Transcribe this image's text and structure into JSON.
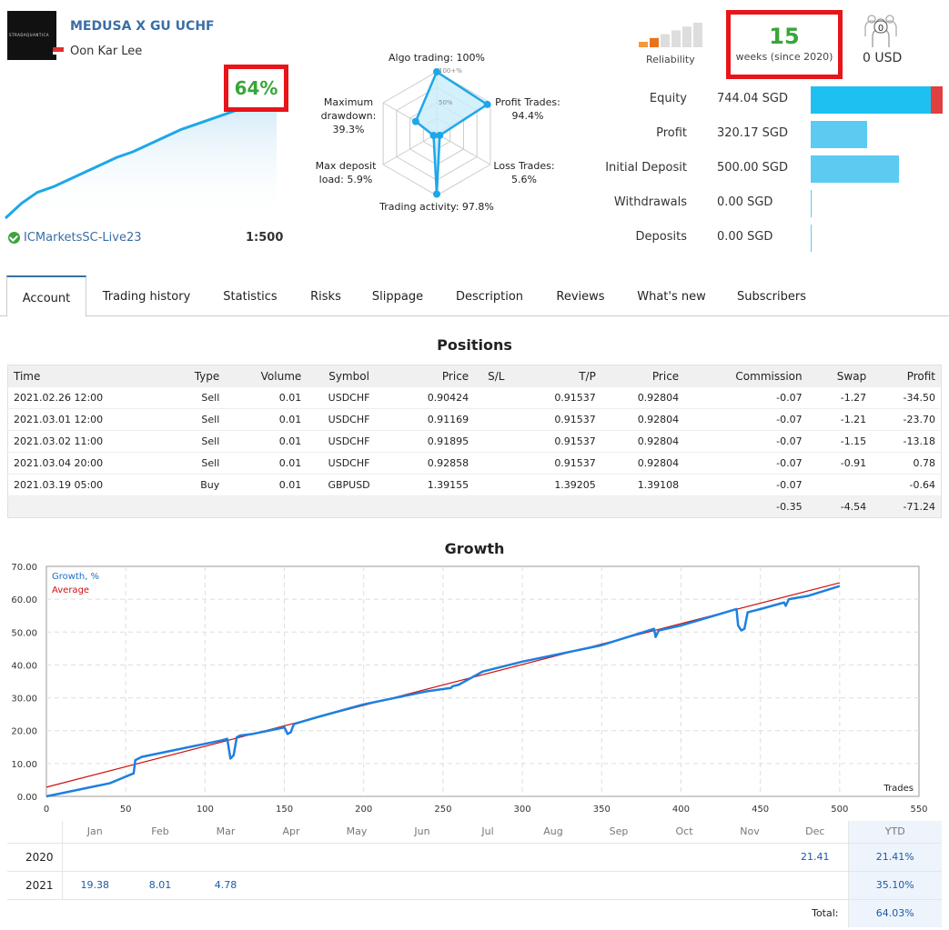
{
  "header": {
    "title": "MEDUSA X GU UCHF",
    "author": "Oon Kar Lee",
    "logo_text": "STRADAQUANTICA",
    "growth_badge": "64%",
    "broker": "ICMarketsSC-Live23",
    "leverage": "1:500"
  },
  "mini_growth": {
    "values": [
      0,
      8,
      14,
      17,
      21,
      25,
      29,
      33,
      36,
      40,
      44,
      48,
      51,
      54,
      57,
      60,
      62,
      64
    ]
  },
  "radar": {
    "labels": {
      "algo": "Algo trading: 100%",
      "profit_trades_1": "Profit Trades:",
      "profit_trades_2": "94.4%",
      "loss_trades_1": "Loss Trades:",
      "loss_trades_2": "5.6%",
      "activity": "Trading activity: 97.8%",
      "deposit_load_1": "Max deposit",
      "deposit_load_2": "load: 5.9%",
      "drawdown_1": "Maximum",
      "drawdown_2": "drawdown:",
      "drawdown_3": "39.3%"
    },
    "ring_labels": {
      "outer": "100+%",
      "mid": "50%"
    },
    "values": [
      100,
      94.4,
      5.6,
      97.8,
      5.9,
      39.3
    ],
    "colors": {
      "line": "#1ea7e8",
      "fill": "#c9ecfa"
    }
  },
  "reliability": {
    "label": "Reliability",
    "level": 2,
    "of": 6
  },
  "weeks": {
    "number": "15",
    "text": "weeks (since 2020)"
  },
  "subscribers": {
    "count": "0",
    "value": "0 USD"
  },
  "financials": [
    {
      "label": "Equity",
      "value": "744.04 SGD",
      "amount": 744.04
    },
    {
      "label": "Profit",
      "value": "320.17 SGD",
      "amount": 320.17
    },
    {
      "label": "Initial Deposit",
      "value": "500.00 SGD",
      "amount": 500.0
    },
    {
      "label": "Withdrawals",
      "value": "0.00 SGD",
      "amount": 0
    },
    {
      "label": "Deposits",
      "value": "0.00 SGD",
      "amount": 0
    }
  ],
  "equity_drawdown_fraction": 0.09,
  "tabs": [
    "Account",
    "Trading history",
    "Statistics",
    "Risks",
    "Slippage",
    "Description",
    "Reviews",
    "What's new",
    "Subscribers"
  ],
  "positions": {
    "heading": "Positions",
    "columns": [
      "Time",
      "Type",
      "Volume",
      "Symbol",
      "Price",
      "S/L",
      "T/P",
      "Price",
      "Commission",
      "Swap",
      "Profit"
    ],
    "rows": [
      [
        "2021.02.26 12:00",
        "Sell",
        "0.01",
        "USDCHF",
        "0.90424",
        "",
        "0.91537",
        "0.92804",
        "-0.07",
        "-1.27",
        "-34.50"
      ],
      [
        "2021.03.01 12:00",
        "Sell",
        "0.01",
        "USDCHF",
        "0.91169",
        "",
        "0.91537",
        "0.92804",
        "-0.07",
        "-1.21",
        "-23.70"
      ],
      [
        "2021.03.02 11:00",
        "Sell",
        "0.01",
        "USDCHF",
        "0.91895",
        "",
        "0.91537",
        "0.92804",
        "-0.07",
        "-1.15",
        "-13.18"
      ],
      [
        "2021.03.04 20:00",
        "Sell",
        "0.01",
        "USDCHF",
        "0.92858",
        "",
        "0.91537",
        "0.92804",
        "-0.07",
        "-0.91",
        "0.78"
      ],
      [
        "2021.03.19 05:00",
        "Buy",
        "0.01",
        "GBPUSD",
        "1.39155",
        "",
        "1.39205",
        "1.39108",
        "-0.07",
        "",
        "-0.64"
      ]
    ],
    "totals": {
      "commission": "-0.35",
      "swap": "-4.54",
      "profit": "-71.24"
    }
  },
  "growth_heading": "Growth",
  "chart_data": {
    "type": "line",
    "legend": [
      {
        "name": "Growth, %",
        "color": "#1e6fc8"
      },
      {
        "name": "Average",
        "color": "#d01010"
      }
    ],
    "xlabel": "Trades",
    "ylabel": "",
    "xlim": [
      0,
      550
    ],
    "ylim": [
      0,
      70
    ],
    "xticks": [
      "0",
      "50",
      "100",
      "150",
      "200",
      "250",
      "300",
      "350",
      "400",
      "450",
      "500",
      "550"
    ],
    "yticks": [
      "0.00",
      "10.00",
      "20.00",
      "30.00",
      "40.00",
      "50.00",
      "60.00",
      "70.00"
    ],
    "series": [
      {
        "name": "Growth, %",
        "x": [
          0,
          10,
          20,
          30,
          40,
          50,
          55,
          56,
          60,
          70,
          80,
          90,
          100,
          110,
          114,
          116,
          118,
          120,
          122,
          130,
          140,
          150,
          152,
          154,
          156,
          170,
          200,
          240,
          255,
          256,
          260,
          275,
          300,
          350,
          383,
          384,
          386,
          400,
          435,
          436,
          438,
          440,
          442,
          450,
          465,
          466,
          468,
          480,
          500
        ],
        "y": [
          0,
          1,
          2,
          3,
          4,
          6,
          7,
          11,
          12,
          13,
          14,
          15,
          16,
          17,
          17.5,
          11.5,
          12.5,
          18,
          18.5,
          19,
          20,
          21,
          19,
          19.5,
          22,
          24,
          28,
          32,
          33,
          33.5,
          34,
          38,
          41,
          46,
          51,
          48.5,
          50.5,
          52,
          57,
          52,
          50.5,
          51,
          56,
          57,
          59,
          58,
          60,
          61,
          64
        ]
      },
      {
        "name": "Average",
        "x": [
          0,
          500
        ],
        "y": [
          2.8,
          65
        ]
      }
    ]
  },
  "monthly": {
    "months": [
      "Jan",
      "Feb",
      "Mar",
      "Apr",
      "May",
      "Jun",
      "Jul",
      "Aug",
      "Sep",
      "Oct",
      "Nov",
      "Dec"
    ],
    "ytd_label": "YTD",
    "rows": [
      {
        "year": "2020",
        "values": [
          "",
          "",
          "",
          "",
          "",
          "",
          "",
          "",
          "",
          "",
          "",
          "21.41"
        ],
        "ytd": "21.41%"
      },
      {
        "year": "2021",
        "values": [
          "19.38",
          "8.01",
          "4.78",
          "",
          "",
          "",
          "",
          "",
          "",
          "",
          "",
          ""
        ],
        "ytd": "35.10%"
      }
    ],
    "total_label": "Total:",
    "total": "64.03%"
  }
}
